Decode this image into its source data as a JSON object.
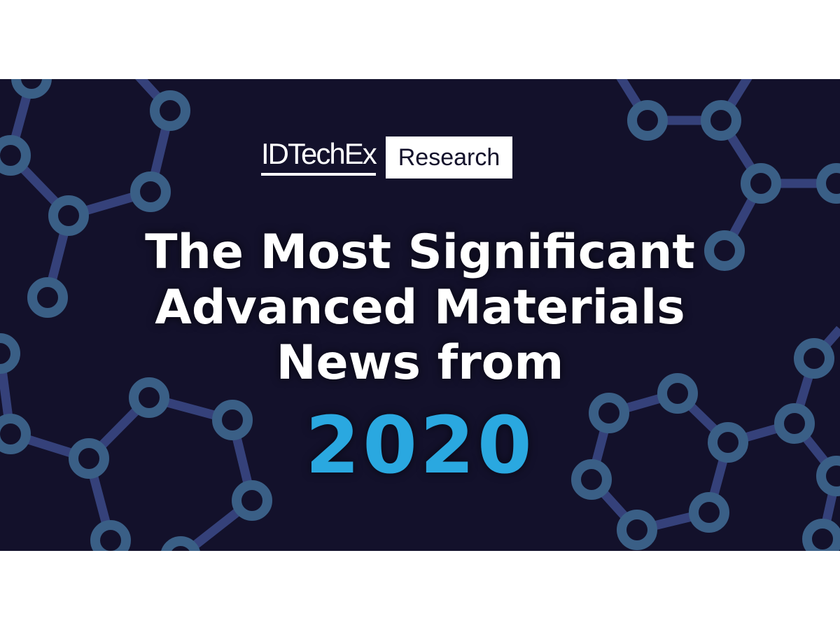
{
  "logo": {
    "brand": "IDTechEx",
    "badge": "Research"
  },
  "headline": {
    "lines": [
      "The Most Significant",
      "Advanced Materials",
      "News from"
    ],
    "year": "2020"
  },
  "colors": {
    "background": "#13112b",
    "year": "#2aa8e0",
    "node": "#3a5f86",
    "bond": "#35417a"
  },
  "decoration": "molecule-network-icon"
}
